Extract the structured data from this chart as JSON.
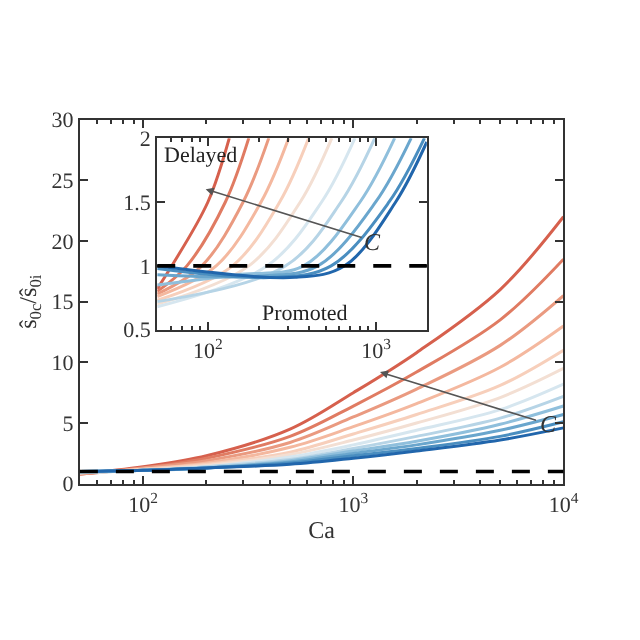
{
  "chart_data": [
    {
      "type": "line",
      "xlabel": "Ca",
      "ylabel": "ŝ$_{0c}$/ŝ$_{0i}$",
      "log": "x",
      "marker": "none",
      "line_style": "solid",
      "x": [
        50,
        100,
        200,
        500,
        1000,
        2000,
        5000,
        10000
      ],
      "xlim": [
        50,
        10000
      ],
      "xticks": [
        {
          "value": 100,
          "label": "10$^{2}$"
        },
        {
          "value": 1000,
          "label": "10$^{3}$"
        },
        {
          "value": 10000,
          "label": "10$^{4}$"
        }
      ],
      "ylim": [
        0,
        30
      ],
      "yticks": [
        0,
        5,
        10,
        15,
        20,
        25,
        30
      ],
      "series": [
        {
          "color": "#d6604d",
          "values": [
            0.8,
            1.4,
            2.3,
            4.5,
            7.5,
            10.8,
            16.0,
            22.0
          ]
        },
        {
          "color": "#e07b62",
          "values": [
            0.8,
            1.3,
            2.1,
            3.9,
            6.4,
            9.2,
            13.5,
            18.5
          ]
        },
        {
          "color": "#ea9a80",
          "values": [
            0.8,
            1.3,
            1.9,
            3.4,
            5.5,
            7.8,
            11.4,
            15.5
          ]
        },
        {
          "color": "#f4b89f",
          "values": [
            0.9,
            1.2,
            1.7,
            3.0,
            4.7,
            6.6,
            9.6,
            13.0
          ]
        },
        {
          "color": "#f7cfbb",
          "values": [
            0.9,
            1.2,
            1.6,
            2.6,
            4.1,
            5.7,
            8.1,
            11.0
          ]
        },
        {
          "color": "#f3dfd3",
          "values": [
            0.9,
            1.1,
            1.5,
            2.4,
            3.6,
            5.0,
            7.1,
            9.5
          ]
        },
        {
          "color": "#d6e6ef",
          "values": [
            0.9,
            1.1,
            1.4,
            2.2,
            3.2,
            4.4,
            6.1,
            8.2
          ]
        },
        {
          "color": "#b6d4e6",
          "values": [
            0.9,
            1.1,
            1.4,
            2.0,
            2.9,
            3.9,
            5.4,
            7.2
          ]
        },
        {
          "color": "#8fbfdc",
          "values": [
            1.0,
            1.1,
            1.3,
            1.9,
            2.7,
            3.5,
            4.9,
            6.4
          ]
        },
        {
          "color": "#6aa6cd",
          "values": [
            1.0,
            1.1,
            1.3,
            1.8,
            2.5,
            3.2,
            4.4,
            5.7
          ]
        },
        {
          "color": "#4a8ec0",
          "values": [
            1.0,
            1.1,
            1.3,
            1.7,
            2.3,
            2.9,
            3.9,
            5.1
          ]
        },
        {
          "color": "#2166ac",
          "values": [
            1.0,
            1.1,
            1.3,
            1.6,
            2.1,
            2.7,
            3.6,
            4.6
          ]
        }
      ],
      "ref_lines": [
        {
          "axis": "y",
          "value": 1,
          "color": "#000000",
          "line_style": "dashed"
        }
      ],
      "annotations": [
        {
          "text": "C",
          "x": 1340,
          "y": 9.2
        }
      ]
    },
    {
      "type": "line",
      "log": "x",
      "marker": "none",
      "line_style": "solid",
      "xlim": [
        50,
        2000
      ],
      "xticks": [
        {
          "value": 100,
          "label": "10$^{2}$"
        },
        {
          "value": 1000,
          "label": "10$^{3}$"
        }
      ],
      "ylim": [
        0.5,
        2
      ],
      "yticks": [
        0.5,
        1,
        1.5,
        2
      ],
      "series": [
        {
          "color": "#d6604d",
          "x": [
            50,
            61,
            100,
            134
          ],
          "values": [
            0.82,
            1.0,
            1.5,
            2.0
          ]
        },
        {
          "color": "#e07b62",
          "x": [
            50,
            75,
            127,
            175
          ],
          "values": [
            0.8,
            1.0,
            1.5,
            2.0
          ]
        },
        {
          "color": "#ea9a80",
          "x": [
            50,
            92,
            162,
            230
          ],
          "values": [
            0.78,
            1.0,
            1.5,
            2.0
          ]
        },
        {
          "color": "#f4b89f",
          "x": [
            50,
            112,
            207,
            302
          ],
          "values": [
            0.76,
            1.0,
            1.5,
            2.0
          ]
        },
        {
          "color": "#f7cfbb",
          "x": [
            50,
            140,
            267,
            397
          ],
          "values": [
            0.73,
            1.0,
            1.5,
            2.0
          ]
        },
        {
          "color": "#f3dfd3",
          "x": [
            50,
            175,
            354,
            545
          ],
          "values": [
            0.7,
            1.0,
            1.5,
            2.0
          ]
        },
        {
          "color": "#d6e6ef",
          "x": [
            50,
            225,
            474,
            748
          ],
          "values": [
            0.68,
            1.0,
            1.5,
            2.0
          ]
        },
        {
          "color": "#b6d4e6",
          "x": [
            50,
            290,
            618,
            982
          ],
          "values": [
            0.72,
            1.0,
            1.5,
            2.0
          ]
        },
        {
          "color": "#8fbfdc",
          "x": [
            50,
            150,
            370,
            802,
            1288
          ],
          "values": [
            0.85,
            0.93,
            1.0,
            1.5,
            2.0
          ]
        },
        {
          "color": "#6aa6cd",
          "x": [
            50,
            200,
            450,
            994,
            1614
          ],
          "values": [
            0.93,
            0.92,
            1.0,
            1.5,
            2.0
          ]
        },
        {
          "color": "#4a8ec0",
          "x": [
            50,
            250,
            540,
            1193,
            1936
          ],
          "values": [
            0.98,
            0.91,
            1.0,
            1.5,
            2.0
          ]
        },
        {
          "color": "#2166ac",
          "x": [
            50,
            330,
            650,
            1306,
            2000
          ],
          "values": [
            1.0,
            0.91,
            1.0,
            1.5,
            1.97
          ]
        }
      ],
      "ref_lines": [
        {
          "axis": "y",
          "value": 1,
          "color": "#000000",
          "line_style": "dashed"
        }
      ],
      "annotations": [
        "Delayed",
        "Promoted",
        {
          "text": "C",
          "x": 97,
          "y": 1.6
        }
      ]
    }
  ]
}
